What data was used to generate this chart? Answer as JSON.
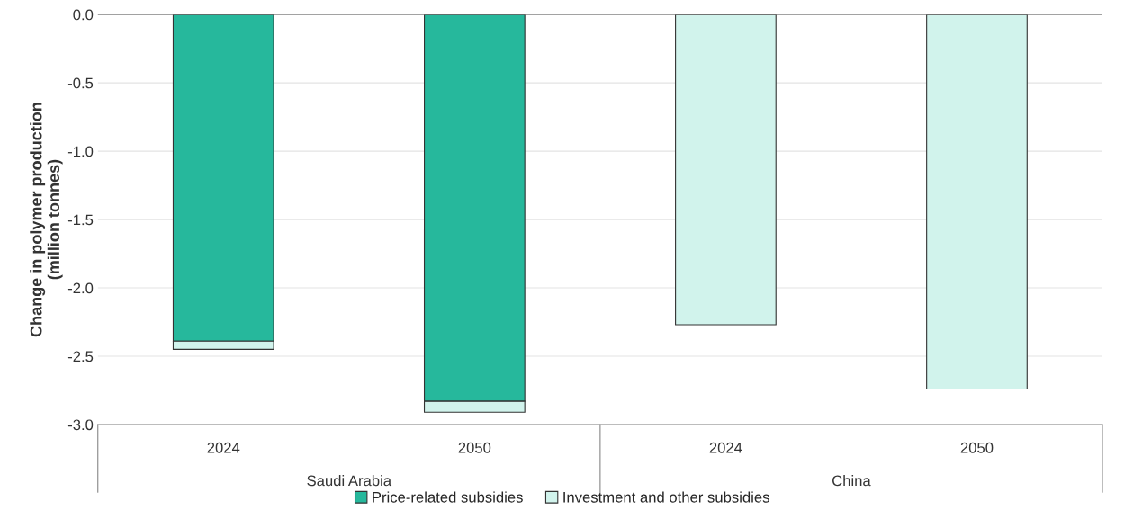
{
  "chart_data": {
    "type": "bar",
    "stacked": true,
    "ylabel": "Change in polymer production\n(million tonnes)",
    "categories": [
      "2024",
      "2050",
      "2024",
      "2050"
    ],
    "annotations": [
      "Saudi Arabia",
      "China"
    ],
    "series": [
      {
        "name": "Price-related subsidies",
        "color": "#26b89c",
        "values": [
          -2.39,
          -2.83,
          null,
          null
        ]
      },
      {
        "name": "Investment and other subsidies",
        "color": "#d1f3ec",
        "values": [
          -0.06,
          -0.08,
          -2.27,
          -2.74
        ]
      }
    ],
    "ylim": [
      -3.0,
      0.0
    ],
    "yticks": [
      {
        "value": -3.0,
        "label": "-3.0"
      },
      {
        "value": -2.5,
        "label": "-2.5"
      },
      {
        "value": -2.0,
        "label": "-2.0"
      },
      {
        "value": -1.5,
        "label": "-1.5"
      },
      {
        "value": -1.0,
        "label": "-1.0"
      },
      {
        "value": -0.5,
        "label": "-0.5"
      },
      {
        "value": 0.0,
        "label": "0.0"
      }
    ],
    "grid": "y",
    "legend": "bottom"
  }
}
